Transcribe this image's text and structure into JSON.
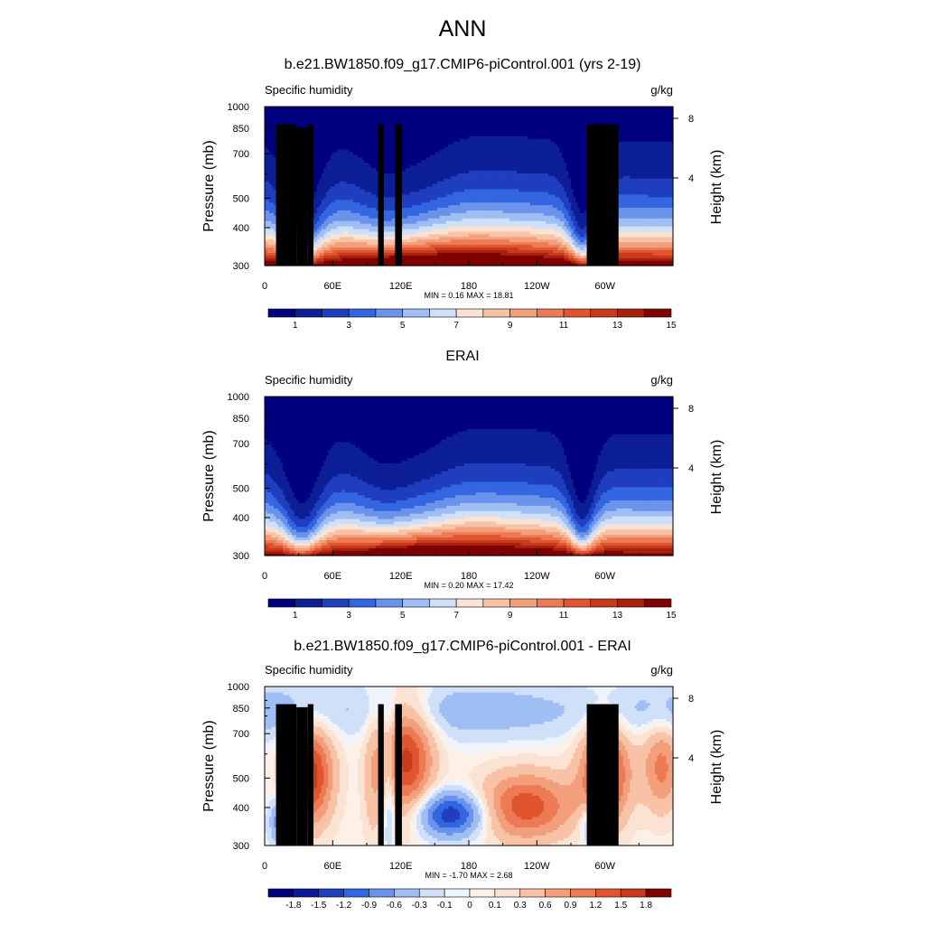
{
  "figure": {
    "title": "ANN"
  },
  "chart_data": [
    {
      "type": "heatmap",
      "title": "b.e21.BW1850.f09_g17.CMIP6-piControl.001 (yrs 2-19)",
      "left_label": "Specific humidity",
      "right_label": "g/kg",
      "ylabel": "Pressure (mb)",
      "ylabel_right": "Height (km)",
      "xticks": [
        "0",
        "60E",
        "120E",
        "180",
        "120W",
        "60W"
      ],
      "yticks": [
        "300",
        "400",
        "500",
        "700",
        "850",
        "1000"
      ],
      "yticks_right": [
        "8",
        "4"
      ],
      "ylim": [
        1000,
        300
      ],
      "xlim": [
        0,
        360
      ],
      "stats": "MIN =   0.16  MAX =  18.81",
      "min": 0.16,
      "max": 18.81,
      "colorbar_labels": [
        "1",
        "3",
        "5",
        "7",
        "9",
        "11",
        "13",
        "15"
      ],
      "colormap": [
        "#00007f",
        "#0d1f96",
        "#1f3fbf",
        "#3366e0",
        "#6b93ec",
        "#9fbef3",
        "#cfe0f8",
        "#fbe3d3",
        "#f7c2a6",
        "#f39f7b",
        "#ec7b55",
        "#e0552f",
        "#c73a1d",
        "#a8200f",
        "#7f0000"
      ]
    },
    {
      "type": "heatmap",
      "title": "ERAI",
      "left_label": "Specific humidity",
      "right_label": "g/kg",
      "ylabel": "Pressure (mb)",
      "ylabel_right": "Height (km)",
      "xticks": [
        "0",
        "60E",
        "120E",
        "180",
        "120W",
        "60W"
      ],
      "yticks": [
        "300",
        "400",
        "500",
        "700",
        "850",
        "1000"
      ],
      "yticks_right": [
        "8",
        "4"
      ],
      "ylim": [
        1000,
        300
      ],
      "xlim": [
        0,
        360
      ],
      "stats": "MIN =   0.20  MAX =  17.42",
      "min": 0.2,
      "max": 17.42,
      "colorbar_labels": [
        "1",
        "3",
        "5",
        "7",
        "9",
        "11",
        "13",
        "15"
      ],
      "colormap": [
        "#00007f",
        "#0d1f96",
        "#1f3fbf",
        "#3366e0",
        "#6b93ec",
        "#9fbef3",
        "#cfe0f8",
        "#fbe3d3",
        "#f7c2a6",
        "#f39f7b",
        "#ec7b55",
        "#e0552f",
        "#c73a1d",
        "#a8200f",
        "#7f0000"
      ]
    },
    {
      "type": "heatmap",
      "title": "b.e21.BW1850.f09_g17.CMIP6-piControl.001 - ERAI",
      "left_label": "Specific humidity",
      "right_label": "g/kg",
      "ylabel": "Pressure (mb)",
      "ylabel_right": "Height (km)",
      "xticks": [
        "0",
        "60E",
        "120E",
        "180",
        "120W",
        "60W"
      ],
      "yticks": [
        "300",
        "400",
        "500",
        "700",
        "850",
        "1000"
      ],
      "yticks_right": [
        "8",
        "4"
      ],
      "ylim": [
        1000,
        300
      ],
      "xlim": [
        0,
        360
      ],
      "stats": "MIN =  -1.70  MAX =   2.68",
      "min": -1.7,
      "max": 2.68,
      "colorbar_labels": [
        "-1.8",
        "-1.5",
        "-1.2",
        "-0.9",
        "-0.6",
        "-0.3",
        "-0.1",
        "0",
        "0.1",
        "0.3",
        "0.6",
        "0.9",
        "1.2",
        "1.5",
        "1.8"
      ],
      "colormap": [
        "#00007f",
        "#0a1a99",
        "#1f3fbf",
        "#3366e0",
        "#6b93ec",
        "#9fbef3",
        "#cfe0f8",
        "#eef3fc",
        "#fdf0e6",
        "#fbe3d3",
        "#f7c2a6",
        "#f39f7b",
        "#ec7b55",
        "#e0552f",
        "#c73a1d",
        "#7f0000"
      ]
    }
  ]
}
